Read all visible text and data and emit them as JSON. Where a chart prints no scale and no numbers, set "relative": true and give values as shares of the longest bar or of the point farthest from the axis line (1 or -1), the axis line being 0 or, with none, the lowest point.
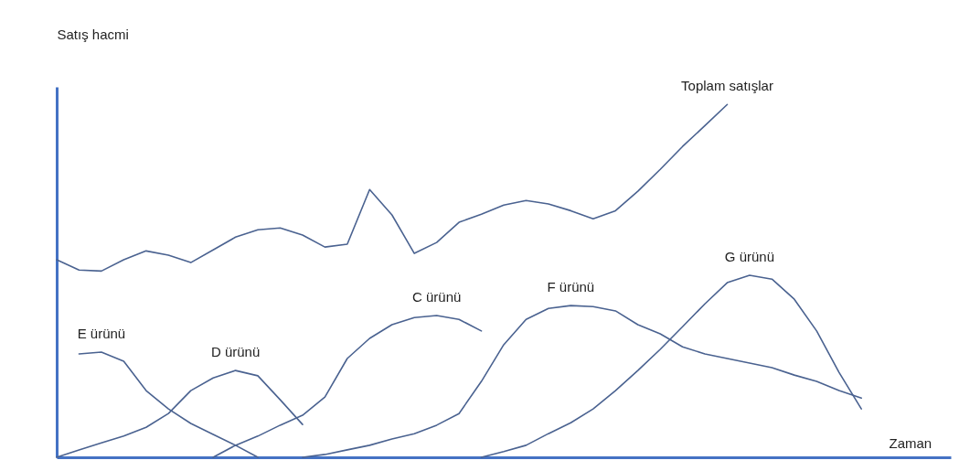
{
  "chart_data": {
    "type": "line",
    "relative": true,
    "xlabel": "Zaman",
    "ylabel": "Satış hacmi",
    "grid": false,
    "legend": false,
    "marker": "none",
    "line_style": "solid",
    "categories": [
      null,
      null,
      null,
      null,
      null,
      null,
      null,
      null,
      null,
      null,
      null,
      null,
      null,
      null,
      null,
      null,
      null,
      null,
      null,
      null,
      null,
      null,
      null,
      null,
      null,
      null,
      null,
      null,
      null,
      null,
      null,
      null,
      null,
      null,
      null,
      null,
      null,
      null,
      null,
      null,
      null
    ],
    "series": [
      {
        "name": "Toplam satışlar",
        "color": "#4a6290",
        "values": [
          0.56,
          0.531,
          0.528,
          0.56,
          0.585,
          0.573,
          0.552,
          0.588,
          0.624,
          0.645,
          0.65,
          0.63,
          0.596,
          0.604,
          0.759,
          0.687,
          0.578,
          0.609,
          0.666,
          0.689,
          0.715,
          0.728,
          0.718,
          0.699,
          0.676,
          0.699,
          0.754,
          0.816,
          0.881,
          0.94,
          1,
          null,
          null,
          null,
          null,
          null,
          null,
          null,
          null,
          null,
          null
        ]
      },
      {
        "name": "E ürünü",
        "color": "#4a6290",
        "values": [
          null,
          0.293,
          0.298,
          0.272,
          0.189,
          0.137,
          0.096,
          0.065,
          0.034,
          0,
          null,
          null,
          null,
          null,
          null,
          null,
          null,
          null,
          null,
          null,
          null,
          null,
          null,
          null,
          null,
          null,
          null,
          null,
          null,
          null,
          null,
          null,
          null,
          null,
          null,
          null,
          null,
          null,
          null,
          null,
          null
        ]
      },
      {
        "name": "D ürünü",
        "color": "#4a6290",
        "values": [
          0,
          0.021,
          0.041,
          0.06,
          0.085,
          0.124,
          0.189,
          0.225,
          0.246,
          0.231,
          0.163,
          0.093,
          null,
          null,
          null,
          null,
          null,
          null,
          null,
          null,
          null,
          null,
          null,
          null,
          null,
          null,
          null,
          null,
          null,
          null,
          null,
          null,
          null,
          null,
          null,
          null,
          null,
          null,
          null,
          null,
          null
        ]
      },
      {
        "name": "C ürünü",
        "color": "#4a6290",
        "values": [
          null,
          null,
          null,
          null,
          null,
          null,
          null,
          0,
          0.034,
          0.06,
          0.091,
          0.119,
          0.171,
          0.28,
          0.337,
          0.376,
          0.396,
          0.402,
          0.391,
          0.358,
          null,
          null,
          null,
          null,
          null,
          null,
          null,
          null,
          null,
          null,
          null,
          null,
          null,
          null,
          null,
          null,
          null,
          null,
          null,
          null,
          null
        ]
      },
      {
        "name": "F ürünü",
        "color": "#4a6290",
        "values": [
          null,
          null,
          null,
          null,
          null,
          null,
          null,
          null,
          null,
          null,
          null,
          0,
          0.008,
          0.021,
          0.034,
          0.052,
          0.067,
          0.091,
          0.124,
          0.215,
          0.319,
          0.391,
          0.422,
          0.43,
          0.427,
          0.415,
          0.376,
          0.35,
          0.313,
          0.293,
          0.28,
          0.267,
          0.254,
          0.233,
          0.215,
          0.189,
          0.168,
          null,
          null,
          null,
          null
        ]
      },
      {
        "name": "G ürünü",
        "color": "#4a6290",
        "values": [
          null,
          null,
          null,
          null,
          null,
          null,
          null,
          null,
          null,
          null,
          null,
          null,
          null,
          null,
          null,
          null,
          null,
          null,
          null,
          0,
          0.016,
          0.034,
          0.067,
          0.098,
          0.137,
          0.189,
          0.246,
          0.306,
          0.37,
          0.435,
          0.495,
          0.516,
          0.505,
          0.448,
          0.358,
          0.241,
          0.137,
          null,
          null,
          null,
          null
        ]
      }
    ]
  }
}
